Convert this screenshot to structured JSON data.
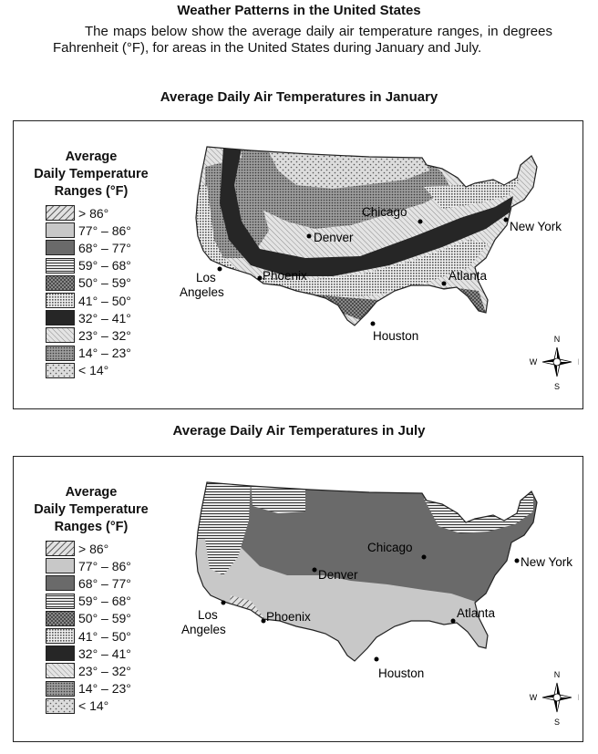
{
  "title": "Weather Patterns in the United States",
  "intro": "The maps below show the average daily air temperature ranges, in degrees Fahrenheit (°F), for areas in the United States during January and July.",
  "maps": [
    {
      "heading": "Average Daily Air Temperatures in January",
      "legend_title": [
        "Average",
        "Daily Temperature",
        "Ranges (°F)"
      ],
      "cities": {
        "chicago": "Chicago",
        "denver": "Denver",
        "new_york": "New York",
        "los": "Los",
        "angeles": "Angeles",
        "phoenix": "Phoenix",
        "atlanta": "Atlanta",
        "houston": "Houston"
      }
    },
    {
      "heading": "Average Daily Air Temperatures in July",
      "legend_title": [
        "Average",
        "Daily Temperature",
        "Ranges (°F)"
      ],
      "cities": {
        "chicago": "Chicago",
        "denver": "Denver",
        "new_york": "New York",
        "los": "Los",
        "angeles": "Angeles",
        "phoenix": "Phoenix",
        "atlanta": "Atlanta",
        "houston": "Houston"
      }
    }
  ],
  "legend": [
    {
      "label": "> 86°",
      "pattern": "diag-hatch"
    },
    {
      "label": "77° – 86°",
      "pattern": "light-gray"
    },
    {
      "label": "68° – 77°",
      "pattern": "dark-gray"
    },
    {
      "label": "59° – 68°",
      "pattern": "horizontal-lines"
    },
    {
      "label": "50° – 59°",
      "pattern": "crosshatch"
    },
    {
      "label": "41° – 50°",
      "pattern": "fine-dots"
    },
    {
      "label": "32° – 41°",
      "pattern": "solid-black"
    },
    {
      "label": "23° – 32°",
      "pattern": "light-diagonal"
    },
    {
      "label": "14° – 23°",
      "pattern": "dense-dots"
    },
    {
      "label": "< 14°",
      "pattern": "sparse-dots"
    }
  ],
  "compass": {
    "n": "N",
    "s": "S",
    "e": "E",
    "w": "W"
  }
}
